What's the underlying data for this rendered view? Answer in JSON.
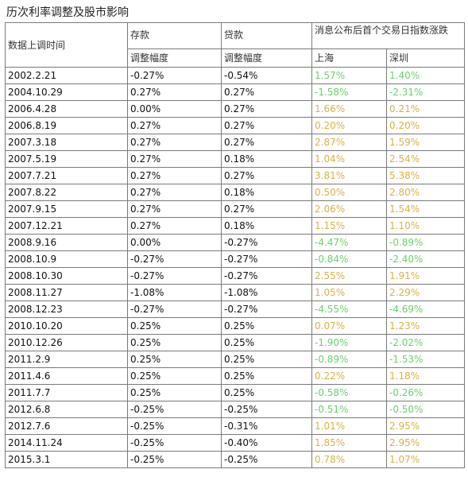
{
  "title": "历次利率调整及股市影响",
  "headers": {
    "date": "数据上调时间",
    "deposit": "存款",
    "loan": "贷款",
    "market": "消息公布后首个交易日指数涨跌",
    "deposit_sub": "调整幅度",
    "loan_sub": "调整幅度",
    "sh": "上海",
    "sz": "深圳"
  },
  "rows": [
    {
      "date": "2002.2.21",
      "deposit": "-0.27%",
      "loan": "-0.54%",
      "sh": "1.57%",
      "sz": "1.40%",
      "shc": "grn",
      "szc": "grn"
    },
    {
      "date": "2004.10.29",
      "deposit": "0.27%",
      "loan": "0.27%",
      "sh": "-1.58%",
      "sz": "-2.31%",
      "shc": "grn",
      "szc": "grn"
    },
    {
      "date": "2006.4.28",
      "deposit": "0.00%",
      "loan": "0.27%",
      "sh": "1.66%",
      "sz": "0.21%",
      "shc": "ylw",
      "szc": "ylw"
    },
    {
      "date": "2006.8.19",
      "deposit": "0.27%",
      "loan": "0.27%",
      "sh": "0.20%",
      "sz": "0.20%",
      "shc": "ylw",
      "szc": "ylw"
    },
    {
      "date": "2007.3.18",
      "deposit": "0.27%",
      "loan": "0.27%",
      "sh": "2.87%",
      "sz": "1.59%",
      "shc": "ylw",
      "szc": "ylw"
    },
    {
      "date": "2007.5.19",
      "deposit": "0.27%",
      "loan": "0.18%",
      "sh": "1.04%",
      "sz": "2.54%",
      "shc": "ylw",
      "szc": "ylw"
    },
    {
      "date": "2007.7.21",
      "deposit": "0.27%",
      "loan": "0.27%",
      "sh": "3.81%",
      "sz": "5.38%",
      "shc": "ylw",
      "szc": "ylw"
    },
    {
      "date": "2007.8.22",
      "deposit": "0.27%",
      "loan": "0.18%",
      "sh": "0.50%",
      "sz": "2.80%",
      "shc": "ylw",
      "szc": "ylw"
    },
    {
      "date": "2007.9.15",
      "deposit": "0.27%",
      "loan": "0.27%",
      "sh": "2.06%",
      "sz": "1.54%",
      "shc": "ylw",
      "szc": "ylw"
    },
    {
      "date": "2007.12.21",
      "deposit": "0.27%",
      "loan": "0.18%",
      "sh": "1.15%",
      "sz": "1.10%",
      "shc": "ylw",
      "szc": "ylw"
    },
    {
      "date": "2008.9.16",
      "deposit": "0.00%",
      "loan": "-0.27%",
      "sh": "-4.47%",
      "sz": "-0.89%",
      "shc": "grn",
      "szc": "grn"
    },
    {
      "date": "2008.10.9",
      "deposit": "-0.27%",
      "loan": "-0.27%",
      "sh": "-0.84%",
      "sz": "-2.40%",
      "shc": "grn",
      "szc": "grn"
    },
    {
      "date": "2008.10.30",
      "deposit": "-0.27%",
      "loan": "-0.27%",
      "sh": "2.55%",
      "sz": "1.91%",
      "shc": "ylw",
      "szc": "ylw"
    },
    {
      "date": "2008.11.27",
      "deposit": "-1.08%",
      "loan": "-1.08%",
      "sh": "1.05%",
      "sz": "2.29%",
      "shc": "ylw",
      "szc": "ylw"
    },
    {
      "date": "2008.12.23",
      "deposit": "-0.27%",
      "loan": "-0.27%",
      "sh": "-4.55%",
      "sz": "-4.69%",
      "shc": "grn",
      "szc": "grn"
    },
    {
      "date": "2010.10.20",
      "deposit": "0.25%",
      "loan": "0.25%",
      "sh": "0.07%",
      "sz": "1.23%",
      "shc": "ylw",
      "szc": "ylw"
    },
    {
      "date": "2010.12.26",
      "deposit": "0.25%",
      "loan": "0.25%",
      "sh": "-1.90%",
      "sz": "-2.02%",
      "shc": "grn",
      "szc": "grn"
    },
    {
      "date": "2011.2.9",
      "deposit": "0.25%",
      "loan": "0.25%",
      "sh": "-0.89%",
      "sz": "-1.53%",
      "shc": "grn",
      "szc": "grn"
    },
    {
      "date": "2011.4.6",
      "deposit": "0.25%",
      "loan": "0.25%",
      "sh": "0.22%",
      "sz": "1.18%",
      "shc": "ylw",
      "szc": "ylw"
    },
    {
      "date": "2011.7.7",
      "deposit": "0.25%",
      "loan": "0.25%",
      "sh": "-0.58%",
      "sz": "-0.26%",
      "shc": "grn",
      "szc": "grn"
    },
    {
      "date": "2012.6.8",
      "deposit": "-0.25%",
      "loan": "-0.25%",
      "sh": "-0.51%",
      "sz": "-0.50%",
      "shc": "grn",
      "szc": "grn"
    },
    {
      "date": "2012.7.6",
      "deposit": "-0.25%",
      "loan": "-0.31%",
      "sh": "1.01%",
      "sz": "2.95%",
      "shc": "ylw",
      "szc": "ylw"
    },
    {
      "date": "2014.11.24",
      "deposit": "-0.25%",
      "loan": "-0.40%",
      "sh": "1.85%",
      "sz": "2.95%",
      "shc": "ylw",
      "szc": "ylw"
    },
    {
      "date": "2015.3.1",
      "deposit": "-0.25%",
      "loan": "-0.25%",
      "sh": "0.78%",
      "sz": "1.07%",
      "shc": "ylw",
      "szc": "ylw"
    }
  ],
  "colors": {
    "ylw": "#dcb04a",
    "grn": "#6ad26a"
  }
}
